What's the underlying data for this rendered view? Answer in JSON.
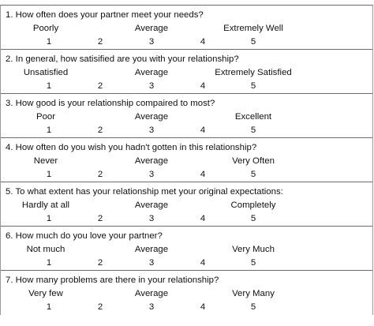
{
  "questionnaire": {
    "items": [
      {
        "question": "1.  How often does your partner meet your needs?",
        "anchors": {
          "low": "Poorly",
          "mid": "Average",
          "high": "Extremely Well"
        },
        "scale": [
          "1",
          "2",
          "3",
          "4",
          "5"
        ]
      },
      {
        "question": "2.  In general, how satisified are you with your relationship?",
        "anchors": {
          "low": "Unsatisfied",
          "mid": "Average",
          "high": "Extremely Satisfied"
        },
        "scale": [
          "1",
          "2",
          "3",
          "4",
          "5"
        ]
      },
      {
        "question": "3.  How good is your relationship compaired to most?",
        "anchors": {
          "low": "Poor",
          "mid": "Average",
          "high": "Excellent"
        },
        "scale": [
          "1",
          "2",
          "3",
          "4",
          "5"
        ]
      },
      {
        "question": "4.  How often do you wish you hadn't gotten in this relationship?",
        "anchors": {
          "low": "Never",
          "mid": "Average",
          "high": "Very Often"
        },
        "scale": [
          "1",
          "2",
          "3",
          "4",
          "5"
        ]
      },
      {
        "question": "5.  To what extent has your relationship met your original expectations:",
        "anchors": {
          "low": "Hardly at all",
          "mid": "Average",
          "high": "Completely"
        },
        "scale": [
          "1",
          "2",
          "3",
          "4",
          "5"
        ]
      },
      {
        "question": "6.  How much do you love your partner?",
        "anchors": {
          "low": "Not much",
          "mid": "Average",
          "high": "Very Much"
        },
        "scale": [
          "1",
          "2",
          "3",
          "4",
          "5"
        ]
      },
      {
        "question": "7.  How many problems are there in your relationship?",
        "anchors": {
          "low": "Very few",
          "mid": "Average",
          "high": "Very Many"
        },
        "scale": [
          "1",
          "2",
          "3",
          "4",
          "5"
        ]
      }
    ]
  }
}
